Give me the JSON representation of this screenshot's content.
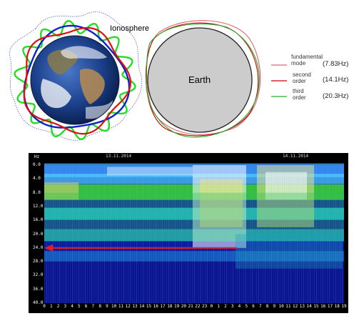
{
  "ionosphere_label": "Ionosphere",
  "earth_label": "Earth",
  "legend": [
    {
      "label": "fundamental mode",
      "freq": "(7.83Hz)",
      "color": "#e06070"
    },
    {
      "label": "second order",
      "freq": "(14.1Hz)",
      "color": "#c80000"
    },
    {
      "label": "third order",
      "freq": "(20.3Hz)",
      "color": "#2aaa2a"
    }
  ],
  "spectrogram": {
    "y_unit": "Hz",
    "dates": [
      "13.11.2014",
      "14.11.2014"
    ],
    "y_ticks": [
      "0.0",
      "4.0",
      "8.0",
      "12.0",
      "16.0",
      "20.0",
      "24.0",
      "28.0",
      "32.0",
      "36.0",
      "40.0"
    ],
    "x_ticks": [
      "0",
      "1",
      "2",
      "3",
      "4",
      "5",
      "6",
      "7",
      "8",
      "9",
      "10",
      "11",
      "12",
      "13",
      "14",
      "15",
      "16",
      "17",
      "18",
      "19",
      "20",
      "21",
      "22",
      "23",
      "0",
      "1",
      "2",
      "3",
      "4",
      "5",
      "6",
      "7",
      "8",
      "9",
      "10",
      "11",
      "12",
      "13",
      "14",
      "15",
      "16",
      "17",
      "18",
      "19"
    ],
    "arrow_hz": 24.0,
    "arrow_color": "#e02020"
  }
}
